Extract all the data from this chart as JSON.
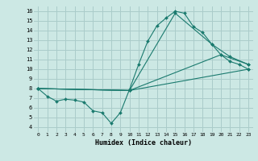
{
  "xlabel": "Humidex (Indice chaleur)",
  "bg_color": "#cce8e4",
  "grid_color": "#aaccca",
  "line_color": "#1a7a6e",
  "xlim": [
    -0.5,
    23.5
  ],
  "ylim": [
    3.5,
    16.5
  ],
  "yticks": [
    4,
    5,
    6,
    7,
    8,
    9,
    10,
    11,
    12,
    13,
    14,
    15,
    16
  ],
  "xticks": [
    0,
    1,
    2,
    3,
    4,
    5,
    6,
    7,
    8,
    9,
    10,
    11,
    12,
    13,
    14,
    15,
    16,
    17,
    18,
    19,
    20,
    21,
    22,
    23
  ],
  "lines": [
    {
      "x": [
        0,
        1,
        2,
        3,
        4,
        5,
        6,
        7,
        8,
        9,
        10,
        11,
        12,
        13,
        14,
        15,
        16,
        17,
        18,
        19,
        20,
        21,
        22,
        23
      ],
      "y": [
        8.0,
        7.2,
        6.7,
        6.9,
        6.8,
        6.6,
        5.7,
        5.5,
        4.4,
        5.5,
        7.9,
        10.5,
        12.9,
        14.5,
        15.3,
        16.0,
        15.8,
        14.4,
        13.8,
        12.6,
        11.5,
        10.8,
        10.5,
        10.0
      ]
    },
    {
      "x": [
        0,
        10,
        15,
        19,
        21,
        23
      ],
      "y": [
        8.0,
        7.8,
        15.8,
        12.6,
        11.3,
        10.5
      ]
    },
    {
      "x": [
        0,
        10,
        20,
        23
      ],
      "y": [
        8.0,
        7.8,
        11.5,
        10.5
      ]
    },
    {
      "x": [
        0,
        10,
        23
      ],
      "y": [
        8.0,
        7.8,
        10.0
      ]
    }
  ]
}
